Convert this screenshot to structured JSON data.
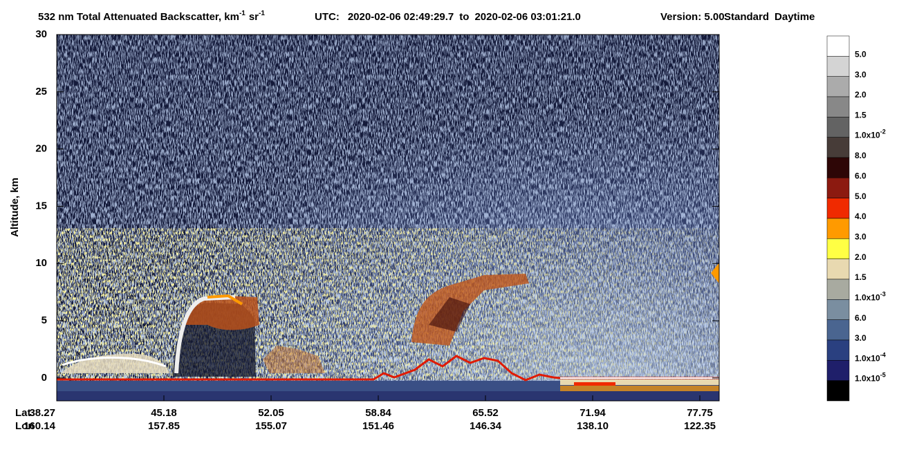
{
  "chart_data": {
    "type": "heatmap",
    "title_parts": [
      {
        "text": "532 nm Total Attenuated Backscatter, km",
        "sup": "-1"
      },
      {
        "text": "sr",
        "sup": "-1"
      }
    ],
    "time_range": {
      "label": "UTC:",
      "start": "2020-02-06 02:49:29.7",
      "sep": "to",
      "end": "2020-02-06 03:01:21.0"
    },
    "version": "Version: 5.00",
    "mode": [
      "Standard",
      "Daytime"
    ],
    "ylabel": "Altitude, km",
    "ylim": [
      -2,
      30
    ],
    "yticks": [
      0,
      5,
      10,
      15,
      20,
      25,
      30
    ],
    "x_rows": [
      {
        "label": "Lat",
        "values": [
          "38.27",
          "45.18",
          "52.05",
          "58.84",
          "65.52",
          "71.94",
          "77.75"
        ]
      },
      {
        "label": "Lon",
        "values": [
          "160.14",
          "157.85",
          "155.07",
          "151.46",
          "146.34",
          "138.10",
          "122.35"
        ]
      }
    ],
    "colorbar": {
      "colors": [
        "#ffffff",
        "#d4d4d4",
        "#ababab",
        "#888888",
        "#636363",
        "#473c38",
        "#2e0606",
        "#8c1a10",
        "#f02a00",
        "#ff9a00",
        "#ffff44",
        "#e8d9b0",
        "#a8aaa0",
        "#7a8ea0",
        "#4a6590",
        "#2a4080",
        "#1f1f6a",
        "#000000"
      ],
      "labels": [
        "5.0",
        "3.0",
        "2.0",
        "1.5",
        {
          "base": "1.0x10",
          "exp": "-2"
        },
        "8.0",
        "6.0",
        "5.0",
        "4.0",
        "3.0",
        "2.0",
        "1.5",
        {
          "base": "1.0x10",
          "exp": "-3"
        },
        "6.0",
        "3.0",
        {
          "base": "1.0x10",
          "exp": "-4"
        },
        {
          "base": "1.0x10",
          "exp": "-5"
        }
      ]
    }
  }
}
